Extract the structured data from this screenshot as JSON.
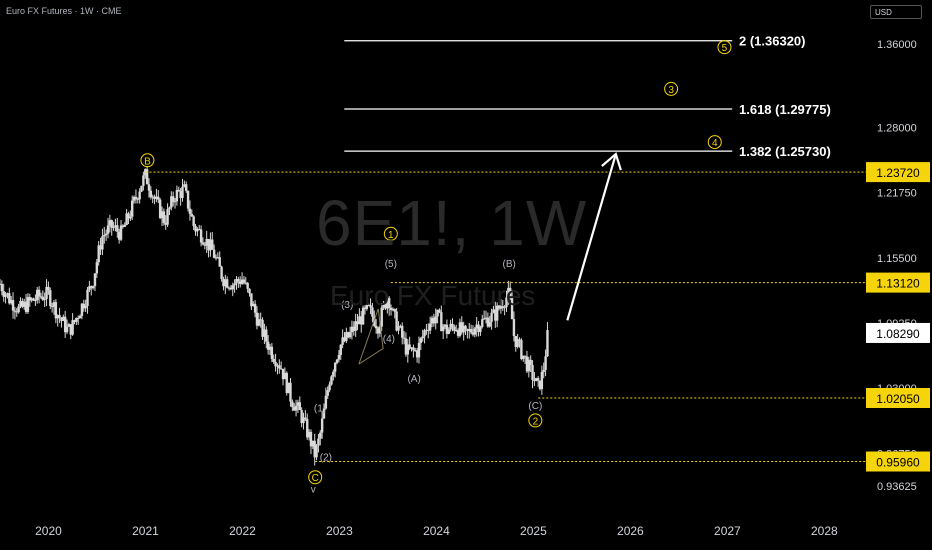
{
  "header": {
    "title": "Euro FX Futures · 1W · CME",
    "currency": "USD"
  },
  "watermark": {
    "symbol": "6E1!, 1W",
    "name": "Euro FX Futures"
  },
  "colors": {
    "bg": "#000000",
    "candle": "#d9d9d9",
    "fib_line": "#ffffff",
    "dotted": "#f5d40a",
    "wave_label": "#f5d40a",
    "sub_label": "#b2b5be",
    "price_tag_bg": "#f5d40a",
    "price_tag_text": "#000000",
    "current_tag_bg": "#ffffff"
  },
  "chart_data": {
    "type": "line",
    "title": "Euro FX Futures",
    "xlabel": "",
    "ylabel": "",
    "ylim": [
      0.915,
      1.385
    ],
    "grid": false,
    "x_ticks": [
      "2020",
      "2021",
      "2022",
      "2023",
      "2024",
      "2025",
      "2026",
      "2027",
      "2028"
    ],
    "y_ticks": [
      "1.36000",
      "1.28000",
      "1.21750",
      "1.15500",
      "1.09250",
      "1.03000",
      "0.96750",
      "0.93625"
    ],
    "series": [
      {
        "name": "Euro FX Futures",
        "x": [
          2019.5,
          2019.6,
          2019.7,
          2019.8,
          2019.9,
          2020.0,
          2020.1,
          2020.2,
          2020.25,
          2020.35,
          2020.45,
          2020.55,
          2020.65,
          2020.75,
          2020.85,
          2020.95,
          2021.0,
          2021.1,
          2021.2,
          2021.3,
          2021.4,
          2021.5,
          2021.6,
          2021.7,
          2021.8,
          2021.9,
          2022.0,
          2022.1,
          2022.2,
          2022.3,
          2022.4,
          2022.5,
          2022.6,
          2022.7,
          2022.75,
          2022.8,
          2022.9,
          2023.0,
          2023.1,
          2023.2,
          2023.3,
          2023.4,
          2023.5,
          2023.55,
          2023.6,
          2023.7,
          2023.8,
          2023.9,
          2024.0,
          2024.1,
          2024.2,
          2024.3,
          2024.4,
          2024.5,
          2024.6,
          2024.7,
          2024.75,
          2024.8,
          2024.9,
          2025.0,
          2025.05,
          2025.1,
          2025.15
        ],
        "values": [
          1.13,
          1.115,
          1.105,
          1.112,
          1.118,
          1.12,
          1.1,
          1.085,
          1.09,
          1.11,
          1.13,
          1.175,
          1.185,
          1.178,
          1.2,
          1.225,
          1.234,
          1.21,
          1.19,
          1.215,
          1.22,
          1.185,
          1.175,
          1.16,
          1.135,
          1.13,
          1.135,
          1.11,
          1.085,
          1.065,
          1.05,
          1.02,
          1.005,
          0.98,
          0.965,
          0.985,
          1.04,
          1.07,
          1.08,
          1.095,
          1.105,
          1.09,
          1.12,
          1.1,
          1.09,
          1.065,
          1.065,
          1.09,
          1.1,
          1.085,
          1.09,
          1.08,
          1.09,
          1.095,
          1.1,
          1.115,
          1.12,
          1.08,
          1.06,
          1.04,
          1.03,
          1.045,
          1.0829
        ]
      }
    ],
    "projection": {
      "from": [
        2025.35,
        1.095
      ],
      "to": [
        2025.85,
        1.2545
      ]
    },
    "fib_levels": [
      {
        "label": "2 (1.36320)",
        "value": 1.3632
      },
      {
        "label": "1.618 (1.29775)",
        "value": 1.29775
      },
      {
        "label": "1.382 (1.25730)",
        "value": 1.2573
      }
    ],
    "price_levels": [
      {
        "label": "1.23720",
        "value": 1.2372
      },
      {
        "label": "1.13120",
        "value": 1.1312
      },
      {
        "label": "1.02050",
        "value": 1.0205
      },
      {
        "label": "0.95960",
        "value": 0.9596
      }
    ],
    "current_price": {
      "label": "1.08290",
      "value": 1.0829
    },
    "wave_labels_major": [
      {
        "text": "B",
        "x": 2021.02,
        "y": 1.2485
      },
      {
        "text": "C",
        "x": 2022.75,
        "y": 0.9445
      },
      {
        "text": "1",
        "x": 2023.53,
        "y": 1.178
      },
      {
        "text": "2",
        "x": 2025.02,
        "y": 0.999
      },
      {
        "text": "3",
        "x": 2026.42,
        "y": 1.317
      },
      {
        "text": "4",
        "x": 2026.87,
        "y": 1.266
      },
      {
        "text": "5",
        "x": 2026.97,
        "y": 1.357
      }
    ],
    "wave_labels_minor": [
      {
        "text": "(5)",
        "x": 2023.53,
        "y": 1.146
      },
      {
        "text": "(B)",
        "x": 2024.75,
        "y": 1.146
      },
      {
        "text": "(3)",
        "x": 2023.08,
        "y": 1.107
      },
      {
        "text": "(4)",
        "x": 2023.51,
        "y": 1.074
      },
      {
        "text": "(A)",
        "x": 2023.77,
        "y": 1.036
      },
      {
        "text": "(C)",
        "x": 2025.02,
        "y": 1.01
      },
      {
        "text": "(1)",
        "x": 2022.8,
        "y": 1.0075
      },
      {
        "text": "(2)",
        "x": 2022.86,
        "y": 0.9605
      },
      {
        "text": "v",
        "x": 2022.73,
        "y": 0.93
      }
    ]
  }
}
